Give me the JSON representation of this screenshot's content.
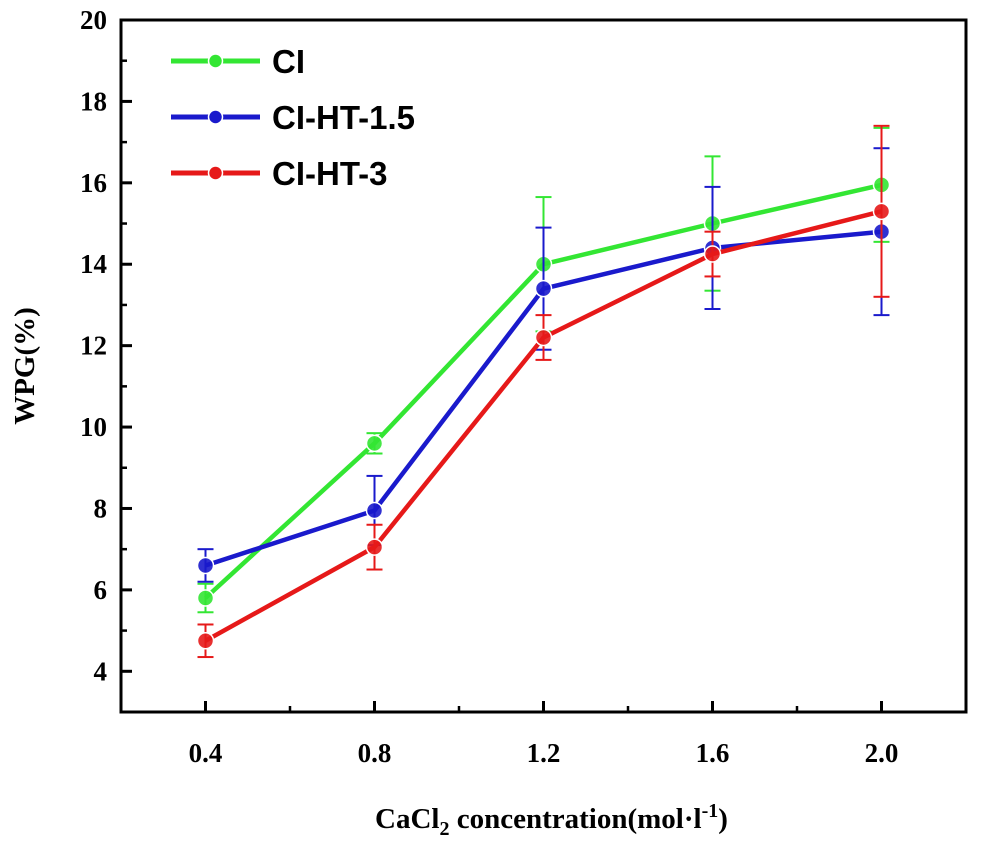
{
  "chart_data": {
    "type": "line",
    "x": [
      0.4,
      0.8,
      1.2,
      1.6,
      2.0
    ],
    "x_tick_labels": [
      "0.4",
      "0.8",
      "1.2",
      "1.6",
      "2.0"
    ],
    "xlim": [
      0.2,
      2.2
    ],
    "ylim": [
      3,
      20
    ],
    "y_ticks": [
      4,
      6,
      8,
      10,
      12,
      14,
      16,
      18,
      20
    ],
    "y_tick_labels": [
      "4",
      "6",
      "8",
      "10",
      "12",
      "14",
      "16",
      "18",
      "20"
    ],
    "ylabel": "WPG(%)",
    "xlabel": {
      "part1": "CaCl",
      "sub": "2",
      "part2": " concentration(mol·l",
      "sup": "-1",
      "part3": ")"
    },
    "legend_position": "top-left",
    "series": [
      {
        "name": "CI",
        "color": "#33e633",
        "values": [
          5.8,
          9.6,
          14.0,
          15.0,
          15.95
        ],
        "errors": [
          0.35,
          0.25,
          1.65,
          1.65,
          1.4
        ]
      },
      {
        "name": "CI-HT-1.5",
        "color": "#1a1acc",
        "values": [
          6.6,
          7.95,
          13.4,
          14.4,
          14.8
        ],
        "errors": [
          0.4,
          0.85,
          1.5,
          1.5,
          2.05
        ]
      },
      {
        "name": "CI-HT-3",
        "color": "#e61919",
        "values": [
          4.75,
          7.05,
          12.2,
          14.25,
          15.3
        ],
        "errors": [
          0.4,
          0.55,
          0.55,
          0.55,
          2.1
        ]
      }
    ]
  }
}
